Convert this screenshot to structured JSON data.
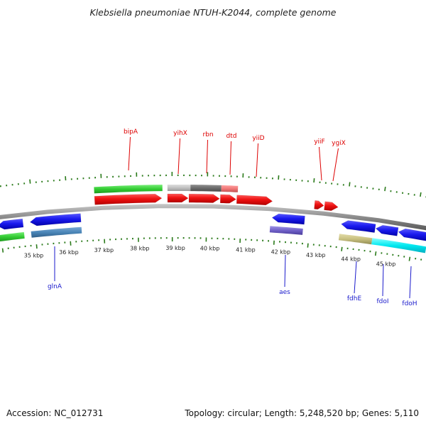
{
  "title": "Klebsiella pneumoniae NTUH-K2044, complete genome",
  "footer": {
    "accession": "Accession: NC_012731",
    "summary": "Topology: circular; Length: 5,248,520 bp; Genes: 5,110"
  },
  "ruler": {
    "labels": [
      "35 kbp",
      "36 kbp",
      "37 kbp",
      "38 kbp",
      "39 kbp",
      "40 kbp",
      "41 kbp",
      "42 kbp",
      "43 kbp",
      "44 kbp",
      "45 kbp"
    ]
  },
  "genes_forward": [
    {
      "name": "bipA",
      "color": "#dd0000"
    },
    {
      "name": "yihX",
      "color": "#dd0000"
    },
    {
      "name": "rbn",
      "color": "#dd0000"
    },
    {
      "name": "dtd",
      "color": "#dd0000"
    },
    {
      "name": "yiiD",
      "color": "#dd0000"
    },
    {
      "name": "yiiF",
      "color": "#dd0000"
    },
    {
      "name": "ygiX",
      "color": "#dd0000"
    }
  ],
  "genes_reverse": [
    {
      "name": "glnA",
      "color": "#1a1acc"
    },
    {
      "name": "aes",
      "color": "#1a1acc"
    },
    {
      "name": "fdhE",
      "color": "#1a1acc"
    },
    {
      "name": "fdoI",
      "color": "#1a1acc"
    },
    {
      "name": "fdoH",
      "color": "#1a1acc"
    }
  ],
  "colors": {
    "forward_cds": "#ee1111",
    "reverse_cds": "#1a1aee",
    "backbone": "#808080",
    "tick": "#2a7a1a",
    "green_block": "#33cc33",
    "steelblue_block": "#4a86b8",
    "purple_block": "#7060c8",
    "khaki_block": "#c8c080",
    "cyan_block": "#00e8f0",
    "gray_block": "#c0c0c0",
    "darkgray_block": "#707070",
    "pink_block": "#f07878"
  }
}
